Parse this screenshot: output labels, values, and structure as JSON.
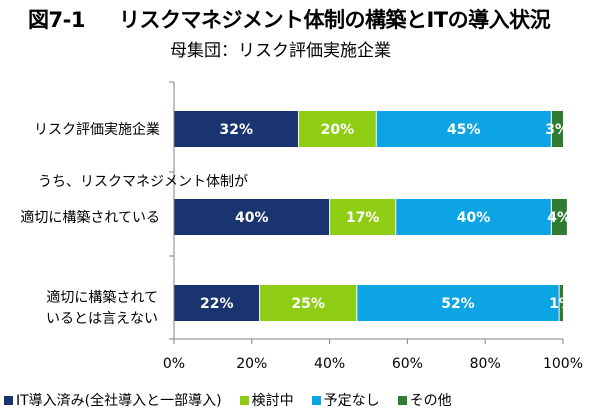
{
  "title": {
    "fig": "図7-1",
    "text": "リスクマネジメント体制の構築とITの導入状況"
  },
  "subtitle": "母集団：リスク評価実施企業",
  "chart_data": {
    "type": "bar",
    "orientation": "horizontal",
    "stacked": true,
    "percent_stacked": true,
    "categories": [
      "リスク評価実施企業",
      "うち、リスクマネジメント体制が 適切に構築されている",
      "適切に構築されて いるとは言えない"
    ],
    "category_lines": [
      [
        "リスク評価実施企業"
      ],
      [
        "うち、リスクマネジメント体制が",
        "適切に構築されている"
      ],
      [
        "適切に構築されて",
        "いるとは言えない"
      ]
    ],
    "series": [
      {
        "name": "IT導入済み(全社導入と一部導入)",
        "color": "#1a3470",
        "values": [
          32,
          40,
          22
        ]
      },
      {
        "name": "検討中",
        "color": "#8fcc14",
        "values": [
          20,
          17,
          25
        ]
      },
      {
        "name": "予定なし",
        "color": "#0ca4e2",
        "values": [
          45,
          40,
          52
        ]
      },
      {
        "name": "その他",
        "color": "#2e7d32",
        "values": [
          3,
          4,
          1
        ]
      }
    ],
    "data_labels": [
      [
        "32%",
        "20%",
        "45%",
        "3%"
      ],
      [
        "40%",
        "17%",
        "40%",
        "4%"
      ],
      [
        "22%",
        "25%",
        "52%",
        "1%"
      ]
    ],
    "x_ticks": [
      "0%",
      "20%",
      "40%",
      "60%",
      "80%",
      "100%"
    ],
    "xlim": [
      0,
      100
    ],
    "legend_position": "bottom",
    "grid": false
  }
}
